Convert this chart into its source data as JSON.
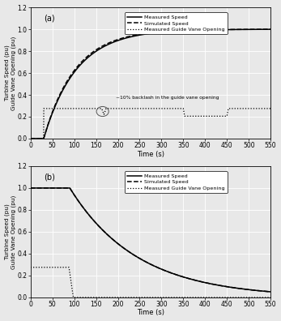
{
  "title_a": "(a)",
  "title_b": "(b)",
  "xlabel": "Time (s)",
  "ylabel": "Turbine Speed (pu)\nGuide Vane Opening (pu)",
  "xlim": [
    0,
    550
  ],
  "ylim": [
    0.0,
    1.2
  ],
  "xticks": [
    0,
    50,
    100,
    150,
    200,
    250,
    300,
    350,
    400,
    450,
    500,
    550
  ],
  "yticks": [
    0.0,
    0.2,
    0.4,
    0.6,
    0.8,
    1.0,
    1.2
  ],
  "annotation_a": "~10% backlash in the guide vane opening",
  "legend_measured": "Measured Speed",
  "legend_simulated": "Simulated Speed",
  "legend_guide": "Measured Guide Vane Opening"
}
